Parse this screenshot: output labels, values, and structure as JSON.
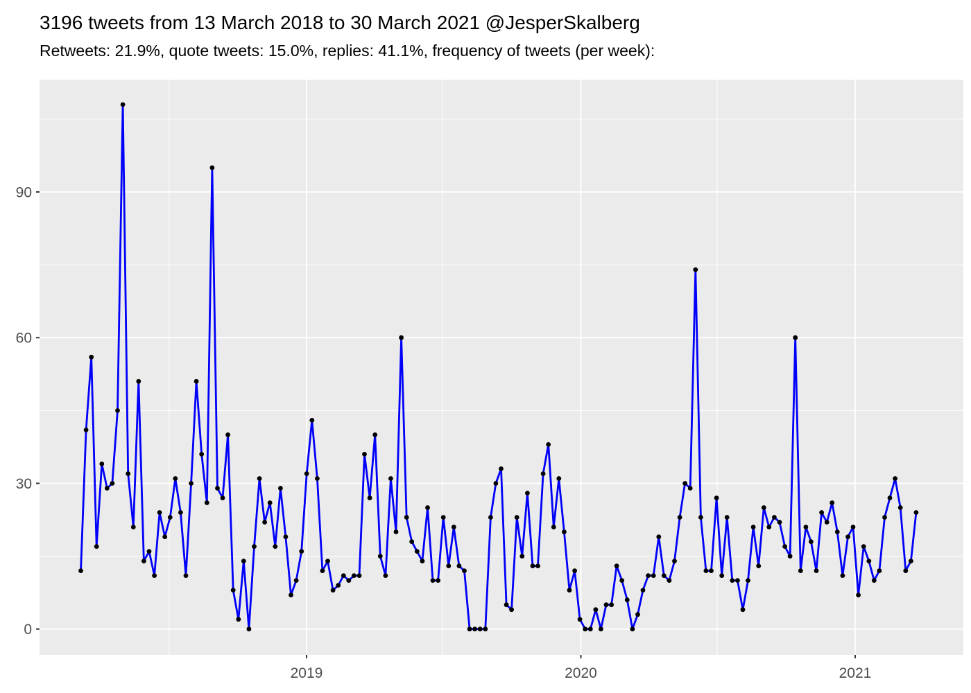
{
  "header": {
    "title": "3196 tweets from 13 March 2018 to 30 March 2021 @JesperSkalberg",
    "subtitle": "Retweets: 21.9%, quote tweets: 15.0%, replies: 41.1%, frequency of tweets (per week):"
  },
  "stats": {
    "total_tweets": "3196",
    "retweets_pct": "21.9%",
    "quote_tweets_pct": "15.0%",
    "replies_pct": "41.1%",
    "period_start": "13 March 2018",
    "period_end": "30 March 2021",
    "account": "@JesperSkalberg"
  },
  "chart_data": {
    "type": "line",
    "title": "frequency of tweets (per week)",
    "xlabel": "",
    "ylabel": "",
    "x_unit": "week (weekly bins from 13 March 2018 to 30 March 2021)",
    "series": [
      {
        "name": "tweets-per-week",
        "values": [
          12,
          41,
          56,
          17,
          34,
          29,
          30,
          45,
          108,
          32,
          21,
          51,
          14,
          16,
          11,
          24,
          19,
          23,
          31,
          24,
          11,
          30,
          51,
          36,
          26,
          95,
          29,
          27,
          40,
          8,
          2,
          14,
          0,
          17,
          31,
          22,
          26,
          17,
          29,
          19,
          7,
          10,
          16,
          32,
          43,
          31,
          12,
          14,
          8,
          9,
          11,
          10,
          11,
          11,
          36,
          27,
          40,
          15,
          11,
          31,
          20,
          60,
          23,
          18,
          16,
          14,
          25,
          10,
          10,
          23,
          13,
          21,
          13,
          12,
          0,
          0,
          0,
          0,
          23,
          30,
          33,
          5,
          4,
          23,
          15,
          28,
          13,
          13,
          32,
          38,
          21,
          31,
          20,
          8,
          12,
          2,
          0,
          0,
          4,
          0,
          5,
          5,
          13,
          10,
          6,
          0,
          3,
          8,
          11,
          11,
          19,
          11,
          10,
          14,
          23,
          30,
          29,
          74,
          23,
          12,
          12,
          27,
          11,
          23,
          10,
          10,
          4,
          10,
          21,
          13,
          25,
          21,
          23,
          22,
          17,
          15,
          60,
          12,
          21,
          18,
          12,
          24,
          22,
          26,
          20,
          11,
          19,
          21,
          7,
          17,
          14,
          10,
          12,
          23,
          27,
          31,
          25,
          12,
          14,
          24
        ]
      }
    ],
    "y_axis": {
      "major_ticks": [
        0,
        30,
        60,
        90
      ],
      "minor_gridlines": [
        15,
        45,
        75,
        105
      ],
      "range": [
        -5.4,
        113.4
      ]
    },
    "x_axis": {
      "major_ticks": [
        {
          "label": "2019",
          "week_index": 42.97
        },
        {
          "label": "2020",
          "week_index": 95.18
        },
        {
          "label": "2021",
          "week_index": 147.39
        }
      ],
      "minor_gridlines_week_index": [
        16.83,
        68.91,
        121.12
      ]
    },
    "legend": "none",
    "grid": "on",
    "colors": {
      "line": "#0000FA",
      "point": "#000000",
      "panel_background": "#EBEBEB",
      "gridline": "#FFFFFF",
      "tick_mark": "#333333",
      "tick_text": "#4D4D4D",
      "title_text": "#000000"
    }
  }
}
